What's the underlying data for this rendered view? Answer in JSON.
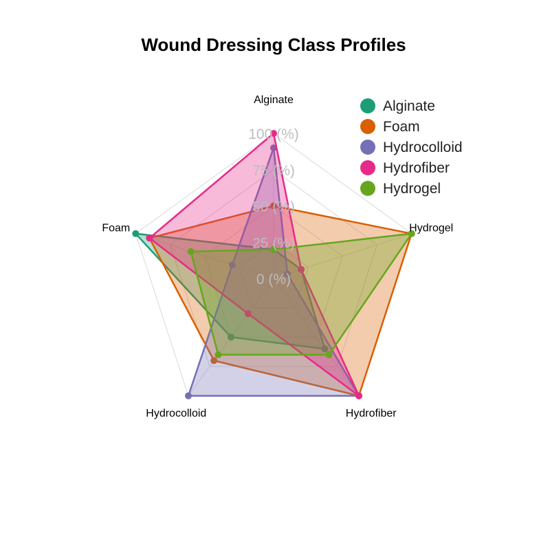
{
  "chart_data": {
    "type": "radar",
    "title": "Wound Dressing Class Profiles",
    "axes": [
      "Alginate",
      "Hydrogel",
      "Hydrofiber",
      "Hydrocolloid",
      "Foam"
    ],
    "grid_labels": [
      "0 (%)",
      "25 (%)",
      "50 (%)",
      "75 (%)",
      "100 (%)"
    ],
    "range": [
      0,
      100
    ],
    "legend_position": "top-right",
    "series": [
      {
        "name": "Alginate",
        "color": "#1b9e77",
        "values": [
          20,
          20,
          60,
          50,
          100
        ]
      },
      {
        "name": "Foam",
        "color": "#d95f02",
        "values": [
          50,
          100,
          100,
          70,
          90
        ]
      },
      {
        "name": "Hydrocolloid",
        "color": "#7570b3",
        "values": [
          90,
          10,
          100,
          100,
          30
        ]
      },
      {
        "name": "Hydrofiber",
        "color": "#e7298a",
        "values": [
          100,
          20,
          100,
          30,
          90
        ]
      },
      {
        "name": "Hydrogel",
        "color": "#66a61e",
        "values": [
          20,
          100,
          65,
          65,
          60
        ]
      }
    ]
  }
}
